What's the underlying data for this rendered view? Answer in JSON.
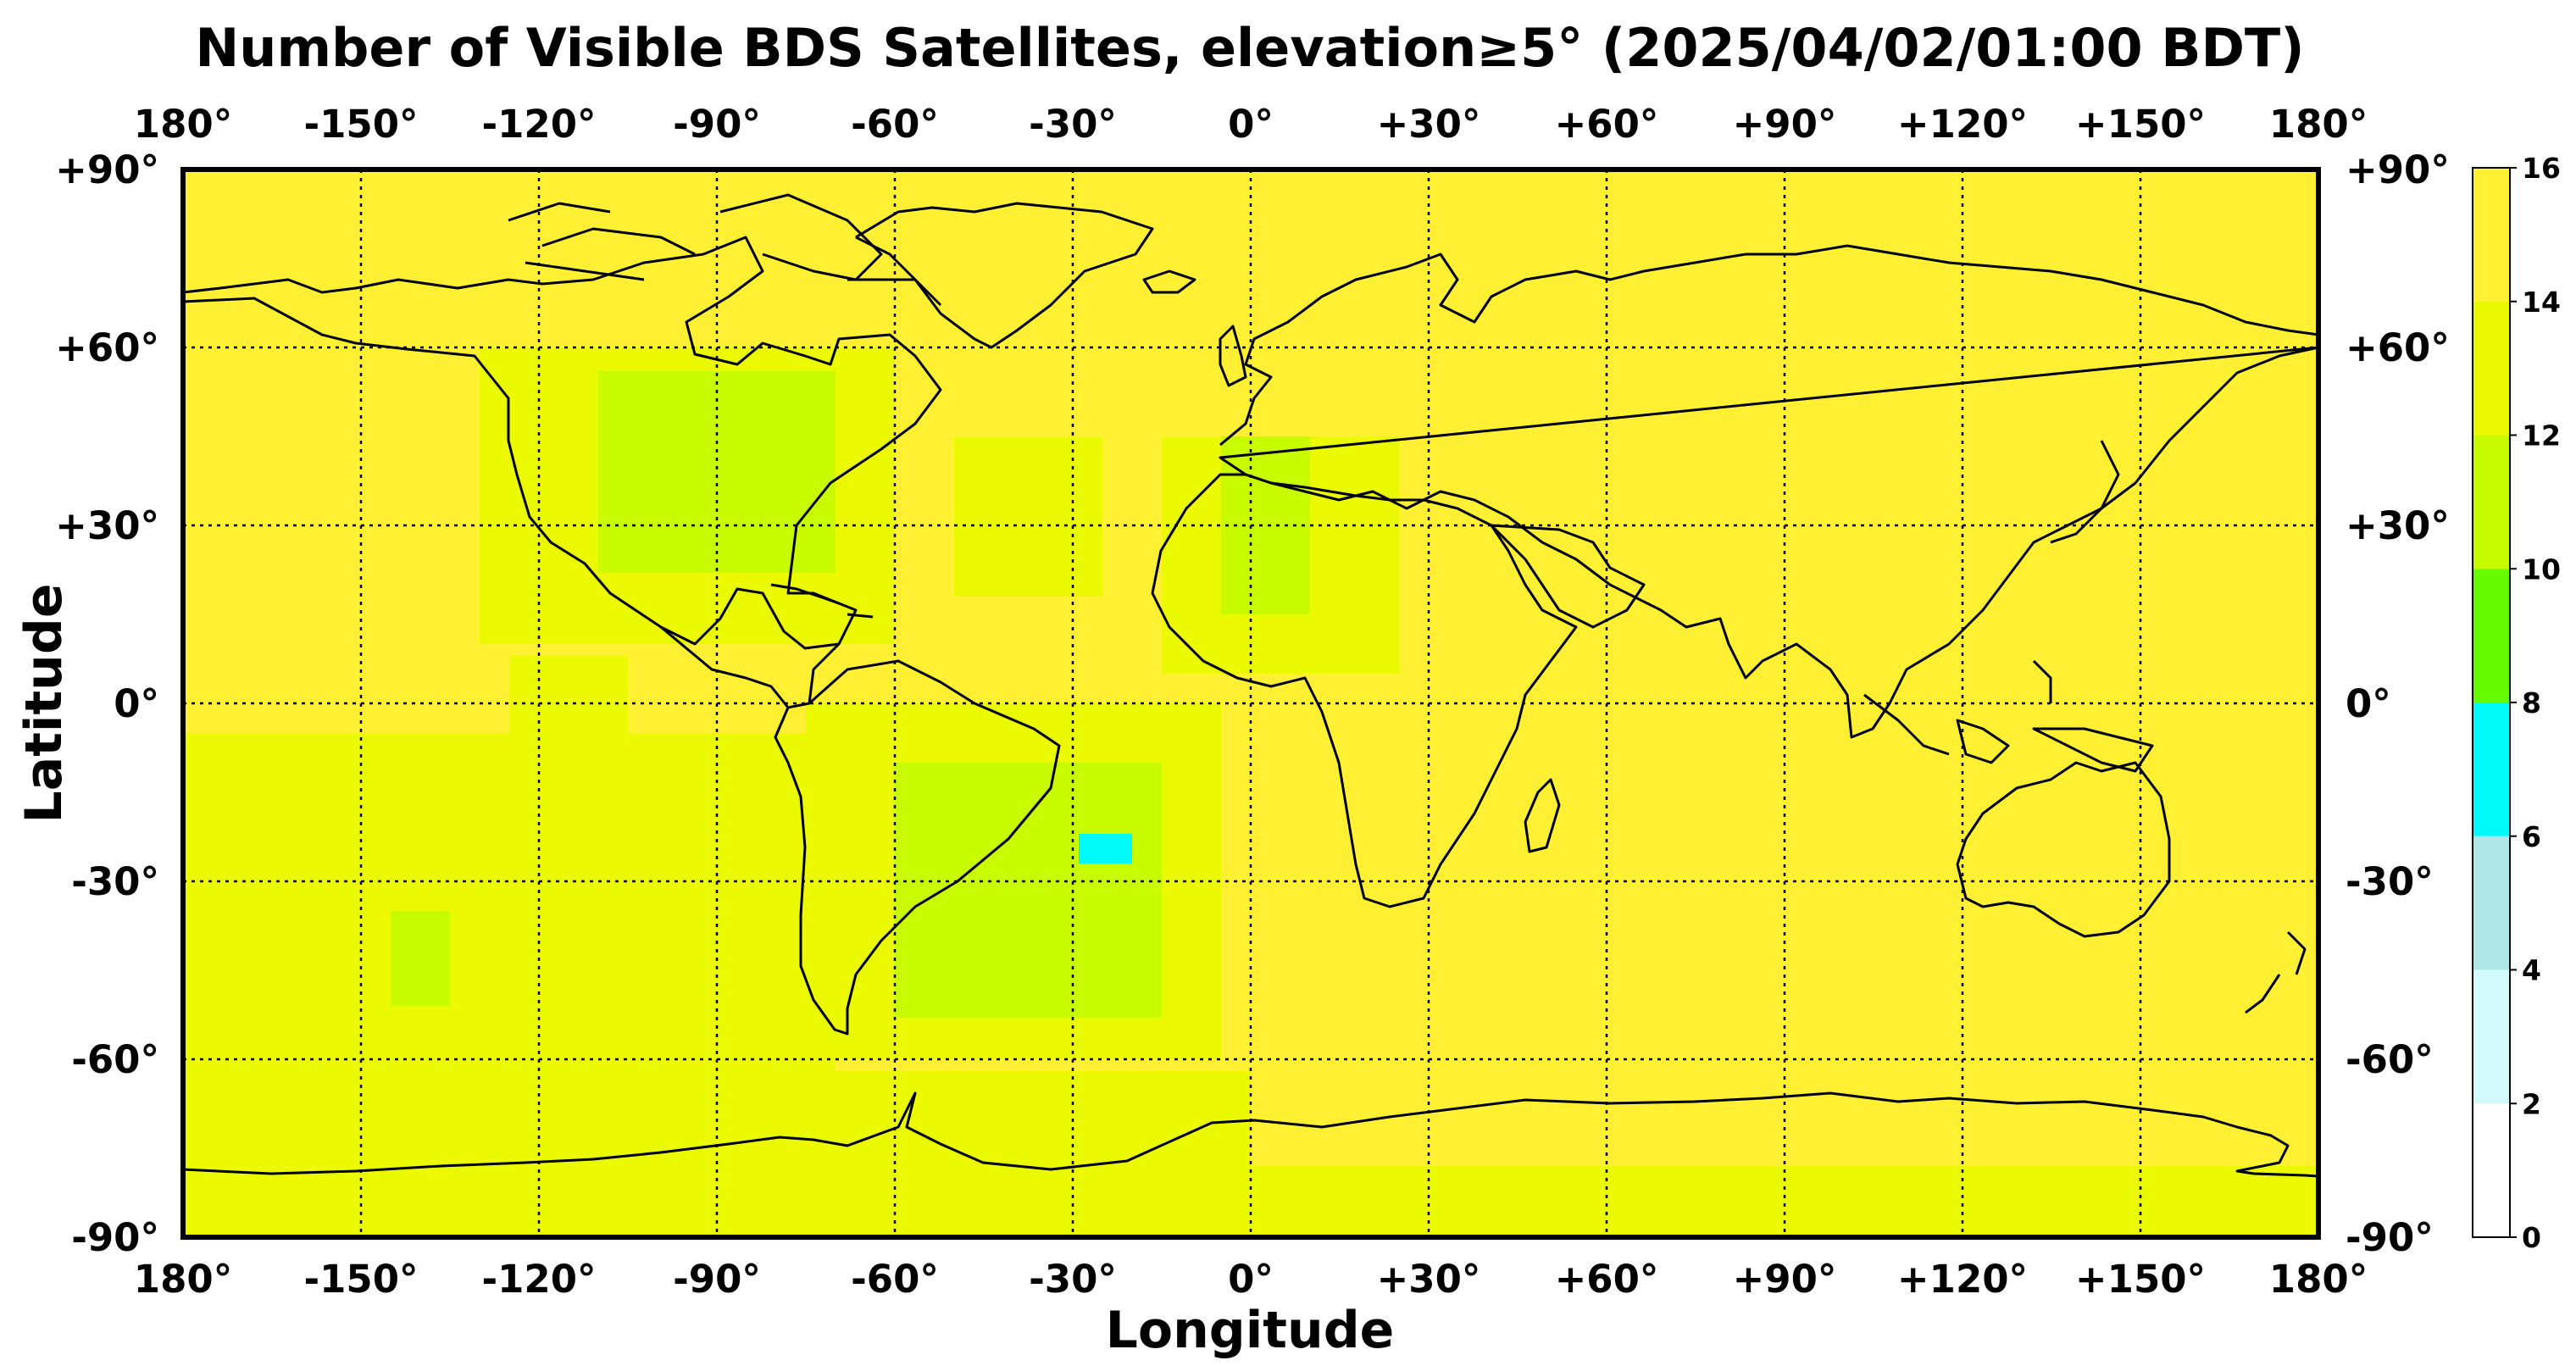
{
  "title": "Number of Visible BDS Satellites, elevation≥5° (2025/04/02/01:00 BDT)",
  "xlabel": "Longitude",
  "ylabel": "Latitude",
  "x_tick_labels": [
    "180°",
    "-150°",
    "-120°",
    "-90°",
    "-60°",
    "-30°",
    "0°",
    "+30°",
    "+60°",
    "+90°",
    "+120°",
    "+150°",
    "180°"
  ],
  "y_tick_labels": [
    "+90°",
    "+60°",
    "+30°",
    "0°",
    "-30°",
    "-60°",
    "-90°"
  ],
  "colorbar": {
    "ticks": [
      "16",
      "14",
      "12",
      "10",
      "8",
      "6",
      "4",
      "2",
      "0"
    ],
    "colors": [
      "#ffffff",
      "#d2fafa",
      "#afe6e6",
      "#00fafa",
      "#66fa00",
      "#c8fa00",
      "#ebfa00",
      "#fff033"
    ]
  },
  "chart_data": {
    "type": "heatmap",
    "title": "Number of Visible BDS Satellites, elevation≥5° (2025/04/02/01:00 BDT)",
    "xlabel": "Longitude",
    "ylabel": "Latitude",
    "xlim": [
      -180,
      180
    ],
    "ylim": [
      -90,
      90
    ],
    "grid": true,
    "colorbar_range": [
      0,
      16
    ],
    "colorbar_bins": [
      0,
      2,
      4,
      6,
      8,
      10,
      12,
      14,
      16
    ],
    "background_value": 15,
    "regions": [
      {
        "lon": [
          -110,
          -70
        ],
        "lat": [
          22,
          56
        ],
        "value": 11
      },
      {
        "lon": [
          -130,
          -60
        ],
        "lat": [
          10,
          60
        ],
        "value": 12
      },
      {
        "lon": [
          -50,
          -25
        ],
        "lat": [
          18,
          45
        ],
        "value": 12
      },
      {
        "lon": [
          -5,
          10
        ],
        "lat": [
          15,
          45
        ],
        "value": 11
      },
      {
        "lon": [
          -15,
          25
        ],
        "lat": [
          5,
          45
        ],
        "value": 12
      },
      {
        "lon": [
          -60,
          -15
        ],
        "lat": [
          -53,
          -10
        ],
        "value": 11
      },
      {
        "lon": [
          -29,
          -20
        ],
        "lat": [
          -27,
          -22
        ],
        "value": 7
      },
      {
        "lon": [
          -75,
          -5
        ],
        "lat": [
          -60,
          0
        ],
        "value": 12
      },
      {
        "lon": [
          -145,
          -135
        ],
        "lat": [
          -51,
          -35
        ],
        "value": 11
      },
      {
        "lon": [
          -180,
          -70
        ],
        "lat": [
          -70,
          -5
        ],
        "value": 13
      },
      {
        "lon": [
          -125,
          -105
        ],
        "lat": [
          -12,
          8
        ],
        "value": 13
      },
      {
        "lon": [
          -180,
          -130
        ],
        "lat": [
          -62,
          -18
        ],
        "value": 12
      },
      {
        "lon": [
          -180,
          180
        ],
        "lat": [
          -90,
          -78
        ],
        "value": 12
      },
      {
        "lon": [
          -180,
          0
        ],
        "lat": [
          -78,
          -62
        ],
        "value": 13
      }
    ]
  }
}
